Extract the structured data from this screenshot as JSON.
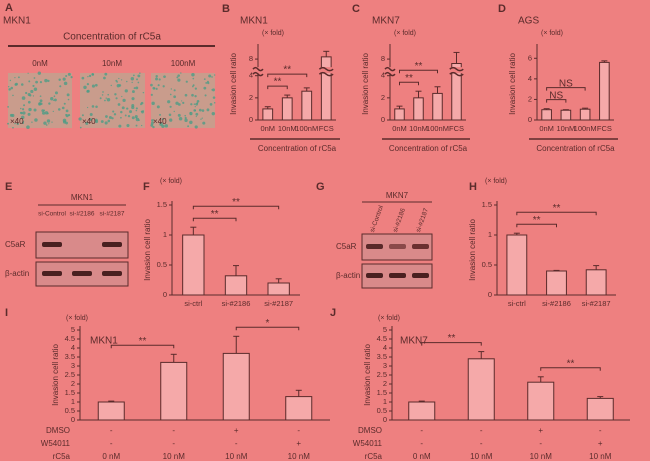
{
  "panel_a": {
    "label": "A",
    "cell_line": "MKN1",
    "heading": "Concentration of rC5a",
    "concentrations": [
      "0nM",
      "10nM",
      "100nM"
    ],
    "magnification": [
      "×40",
      "×40",
      "×40"
    ]
  },
  "panel_e": {
    "label": "E",
    "cell_line": "MKN1",
    "lanes": [
      "si-Control",
      "si-#2186",
      "si-#2187"
    ],
    "rows": [
      "C5aR",
      "β-actin"
    ]
  },
  "panel_g": {
    "label": "G",
    "cell_line": "MKN7",
    "lanes": [
      "si-Control",
      "si-#2186",
      "si-#2187"
    ],
    "rows": [
      "C5aR",
      "β-actin"
    ]
  },
  "chart_data": [
    {
      "label": "B",
      "type": "bar",
      "title": "MKN1",
      "y_label": "Invasion cell ratio",
      "y_unit": "(× fold)",
      "x_label": "Concentration of rC5a",
      "categories": [
        "0nM",
        "10nM",
        "100nM",
        "FCS"
      ],
      "values": [
        1.0,
        2.0,
        2.6,
        8.2
      ],
      "errors": [
        0.2,
        0.25,
        0.3,
        0.5
      ],
      "ylim": [
        0,
        9
      ],
      "yticks": [
        0,
        2,
        4,
        8
      ],
      "axis_break": [
        4.5,
        7
      ],
      "color": "#f5a9a9",
      "brackets": [
        {
          "from": 0,
          "to": 1,
          "label": "**"
        },
        {
          "from": 0,
          "to": 2,
          "label": "**"
        }
      ]
    },
    {
      "label": "C",
      "type": "bar",
      "title": "MKN7",
      "y_label": "Invasion cell ratio",
      "y_unit": "(× fold)",
      "x_label": "Concentration of rC5a",
      "categories": [
        "0nM",
        "10nM",
        "100nM",
        "FCS"
      ],
      "values": [
        1.0,
        2.0,
        2.4,
        7.6
      ],
      "errors": [
        0.25,
        0.6,
        0.6,
        1.0
      ],
      "ylim": [
        0,
        9
      ],
      "yticks": [
        0,
        2,
        4,
        8
      ],
      "axis_break": [
        4.5,
        7
      ],
      "color": "#f5a9a9",
      "brackets": [
        {
          "from": 0,
          "to": 1,
          "label": "**"
        },
        {
          "from": 0,
          "to": 2,
          "label": "**"
        }
      ]
    },
    {
      "label": "D",
      "type": "bar",
      "title": "AGS",
      "y_label": "Invasion cell ratio",
      "y_unit": "(× fold)",
      "x_label": "Concentration of rC5a",
      "categories": [
        "0nM",
        "10nM",
        "100nM",
        "FCS"
      ],
      "values": [
        1.0,
        0.95,
        1.05,
        5.6
      ],
      "errors": [
        0.1,
        0.05,
        0.1,
        0.15
      ],
      "ylim": [
        0,
        7
      ],
      "yticks": [
        0,
        2,
        4,
        6
      ],
      "color": "#f5a9a9",
      "brackets": [
        {
          "from": 0,
          "to": 1,
          "label": "NS"
        },
        {
          "from": 0,
          "to": 2,
          "label": "NS"
        }
      ]
    },
    {
      "label": "F",
      "type": "bar",
      "y_label": "Invasion cell ratio",
      "y_unit": "(× fold)",
      "categories": [
        "si-ctrl",
        "si-#2186",
        "si-#2187"
      ],
      "values": [
        1.0,
        0.32,
        0.2
      ],
      "errors": [
        0.13,
        0.17,
        0.07
      ],
      "ylim": [
        0,
        1.5
      ],
      "yticks": [
        0,
        0.5,
        1,
        1.5
      ],
      "color": "#f5a9a9",
      "brackets": [
        {
          "from": 0,
          "to": 1,
          "label": "**"
        },
        {
          "from": 0,
          "to": 2,
          "label": "**"
        }
      ]
    },
    {
      "label": "H",
      "type": "bar",
      "y_label": "Invasion cell ratio",
      "y_unit": "(× fold)",
      "categories": [
        "si-ctrl",
        "si-#2186",
        "si-#2187"
      ],
      "values": [
        1.0,
        0.4,
        0.42
      ],
      "errors": [
        0.03,
        0.01,
        0.07
      ],
      "ylim": [
        0,
        1.5
      ],
      "yticks": [
        0,
        0.5,
        1,
        1.5
      ],
      "color": "#f5a9a9",
      "brackets": [
        {
          "from": 0,
          "to": 1,
          "label": "**"
        },
        {
          "from": 0,
          "to": 2,
          "label": "**"
        }
      ]
    },
    {
      "label": "I",
      "type": "bar",
      "title": "MKN1",
      "y_label": "Invasion cell ratio",
      "y_unit": "(× fold)",
      "values": [
        1.0,
        3.2,
        3.7,
        1.3
      ],
      "errors": [
        0.05,
        0.45,
        0.95,
        0.35
      ],
      "ylim": [
        0,
        5
      ],
      "yticks": [
        0,
        0.5,
        1,
        1.5,
        2,
        2.5,
        3,
        3.5,
        4,
        4.5,
        5
      ],
      "color": "#f5a9a9",
      "brackets": [
        {
          "from": 0,
          "to": 1,
          "label": "**"
        },
        {
          "from": 2,
          "to": 3,
          "label": "*"
        }
      ],
      "treatments": [
        {
          "name": "DMSO",
          "values": [
            "-",
            "-",
            "+",
            "-"
          ]
        },
        {
          "name": "W54011",
          "values": [
            "-",
            "-",
            "-",
            "+"
          ]
        },
        {
          "name": "rC5a",
          "values": [
            "0 nM",
            "10 nM",
            "10 nM",
            "10 nM"
          ]
        }
      ]
    },
    {
      "label": "J",
      "type": "bar",
      "title": "MKN7",
      "y_label": "Invasion cell ratio",
      "y_unit": "(× fold)",
      "values": [
        1.0,
        3.4,
        2.1,
        1.2
      ],
      "errors": [
        0.05,
        0.4,
        0.3,
        0.1
      ],
      "ylim": [
        0,
        5
      ],
      "yticks": [
        0,
        0.5,
        1,
        1.5,
        2,
        2.5,
        3,
        3.5,
        4,
        4.5,
        5
      ],
      "color": "#f5a9a9",
      "brackets": [
        {
          "from": 0,
          "to": 1,
          "label": "**"
        },
        {
          "from": 2,
          "to": 3,
          "label": "**"
        }
      ],
      "treatments": [
        {
          "name": "DMSO",
          "values": [
            "-",
            "-",
            "+",
            "-"
          ]
        },
        {
          "name": "W54011",
          "values": [
            "-",
            "-",
            "-",
            "+"
          ]
        },
        {
          "name": "rC5a",
          "values": [
            "0 nM",
            "10 nM",
            "10 nM",
            "10 nM"
          ]
        }
      ]
    }
  ]
}
